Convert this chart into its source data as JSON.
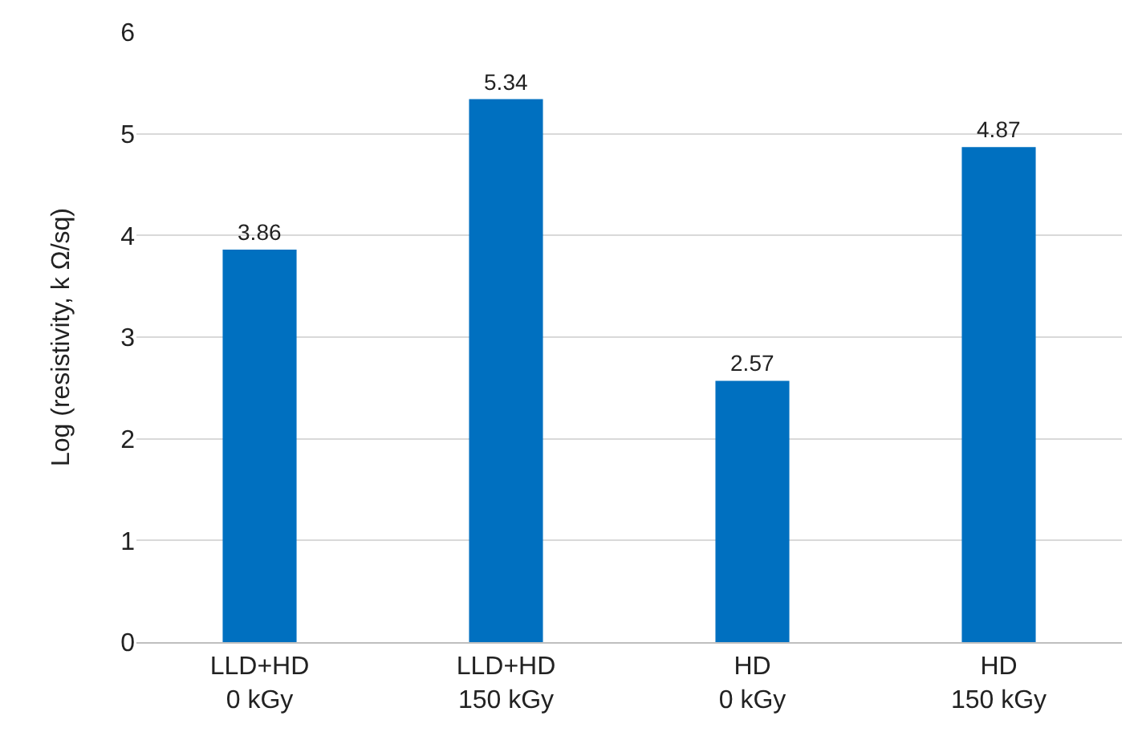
{
  "chart_data": {
    "type": "bar",
    "ylabel": "Log (resistivity, k Ω/sq)",
    "categories": [
      "LLD+HD\n0 kGy",
      "LLD+HD\n150 kGy",
      "HD\n0 kGy",
      "HD\n150 kGy"
    ],
    "values": [
      3.86,
      5.34,
      2.57,
      4.87
    ],
    "color": "#0070c0",
    "ylim": [
      0,
      6
    ],
    "yticks": [
      0,
      1,
      2,
      3,
      4,
      5,
      6
    ],
    "grid": "y",
    "data_labels": true
  }
}
